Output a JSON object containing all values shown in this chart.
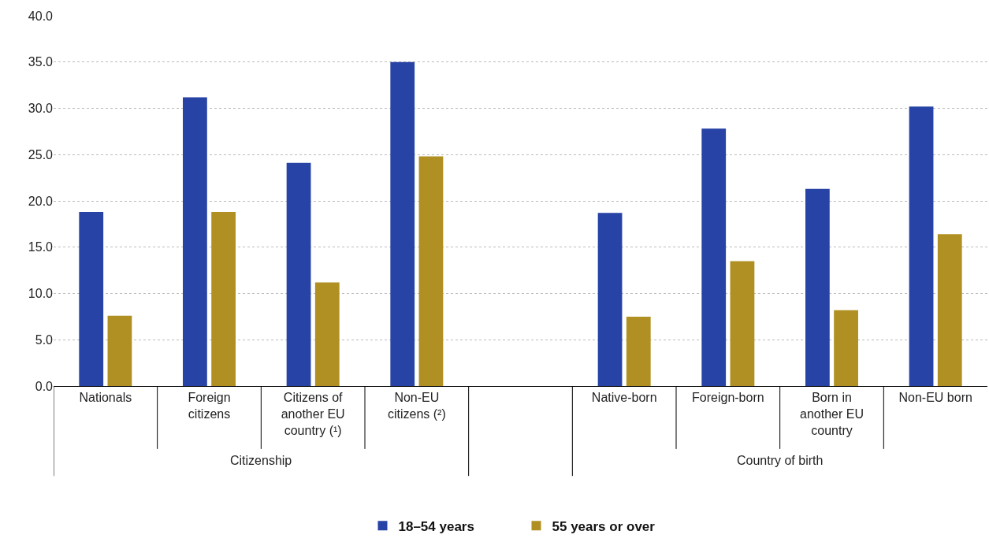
{
  "chart_data": {
    "type": "bar",
    "categories": [
      "Nationals",
      "Foreign citizens",
      "Citizens of another EU country (¹)",
      "Non-EU citizens (²)",
      null,
      "Native-born",
      "Foreign-born",
      "Born in another EU country",
      "Non-EU born"
    ],
    "series": [
      {
        "name": "18–54 years",
        "color": "#2743a5",
        "values": [
          18.8,
          31.2,
          24.1,
          35.0,
          null,
          18.7,
          27.8,
          21.3,
          30.2
        ]
      },
      {
        "name": "55 years or over",
        "color": "#b09022",
        "values": [
          7.6,
          18.8,
          11.2,
          24.8,
          null,
          7.5,
          13.5,
          8.2,
          16.4
        ]
      }
    ],
    "annotations": [
      "Citizenship",
      "Country of birth"
    ],
    "ylim": [
      0,
      40
    ],
    "yticks": [
      {
        "value": 0,
        "label": "0.0"
      },
      {
        "value": 5,
        "label": "5.0"
      },
      {
        "value": 10,
        "label": "10.0"
      },
      {
        "value": 15,
        "label": "15.0"
      },
      {
        "value": 20,
        "label": "20.0"
      },
      {
        "value": 25,
        "label": "25.0"
      },
      {
        "value": 30,
        "label": "30.0"
      },
      {
        "value": 35,
        "label": "35.0"
      },
      {
        "value": 40,
        "label": "40.0"
      }
    ],
    "grid": "y",
    "legend": "bottom"
  }
}
